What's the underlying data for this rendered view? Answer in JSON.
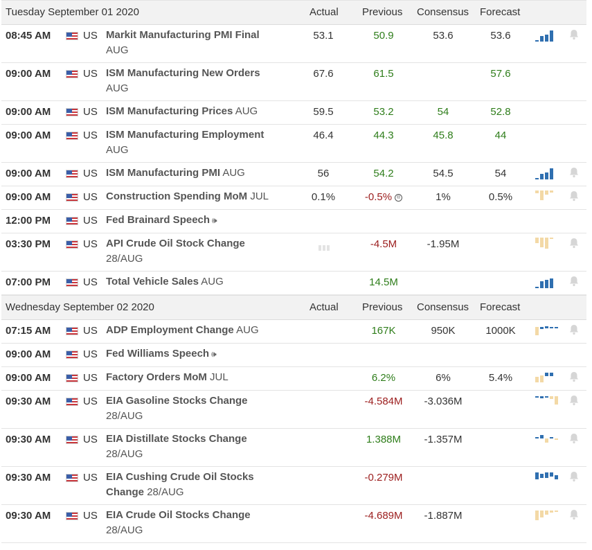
{
  "columns": {
    "actual": "Actual",
    "previous": "Previous",
    "consensus": "Consensus",
    "forecast": "Forecast"
  },
  "days": [
    {
      "date": "Tuesday September 01 2020",
      "events": [
        {
          "time": "08:45 AM",
          "country": "US",
          "name": "Markit Manufacturing PMI Final",
          "period": "AUG",
          "actual": "53.1",
          "previous": "50.9",
          "consensus": "53.6",
          "forecast": "53.6",
          "chart": "bars-blue-rising",
          "bell": true
        },
        {
          "time": "09:00 AM",
          "country": "US",
          "name": "ISM Manufacturing New Orders",
          "period": "AUG",
          "actual": "67.6",
          "previous": "61.5",
          "consensus": "",
          "forecast": "57.6",
          "chart": "",
          "bell": false
        },
        {
          "time": "09:00 AM",
          "country": "US",
          "name": "ISM Manufacturing Prices",
          "period": "AUG",
          "actual": "59.5",
          "previous": "53.2",
          "consensus": "54",
          "forecast": "52.8",
          "chart": "",
          "bell": false
        },
        {
          "time": "09:00 AM",
          "country": "US",
          "name": "ISM Manufacturing Employment",
          "period": "AUG",
          "actual": "46.4",
          "previous": "44.3",
          "consensus": "45.8",
          "forecast": "44",
          "chart": "",
          "bell": false
        },
        {
          "time": "09:00 AM",
          "country": "US",
          "name": "ISM Manufacturing PMI",
          "period": "AUG",
          "actual": "56",
          "previous": "54.2",
          "consensus": "54.5",
          "forecast": "54",
          "chart": "bars-blue-rising",
          "bell": true
        },
        {
          "time": "09:00 AM",
          "country": "US",
          "name": "Construction Spending MoM",
          "period": "JUL",
          "actual": "0.1%",
          "previous": "-0.5%",
          "consensus": "1%",
          "forecast": "0.5%",
          "chart": "bars-tan-mixed",
          "bell": true
        },
        {
          "time": "12:00 PM",
          "country": "US",
          "name": "Fed Brainard Speech",
          "period": "",
          "actual": "",
          "previous": "",
          "consensus": "",
          "forecast": "",
          "chart": "",
          "bell": false
        },
        {
          "time": "03:30 PM",
          "country": "US",
          "name": "API Crude Oil Stock Change",
          "period": "28/AUG",
          "actual": "",
          "previous": "-4.5M",
          "consensus": "-1.95M",
          "forecast": "",
          "chart": "bars-tan-neg",
          "bell": true
        },
        {
          "time": "07:00 PM",
          "country": "US",
          "name": "Total Vehicle Sales",
          "period": "AUG",
          "actual": "",
          "previous": "14.5M",
          "consensus": "",
          "forecast": "",
          "chart": "bars-blue-rising",
          "bell": true
        }
      ]
    },
    {
      "date": "Wednesday September 02 2020",
      "events": [
        {
          "time": "07:15 AM",
          "country": "US",
          "name": "ADP Employment Change",
          "period": "AUG",
          "actual": "",
          "previous": "167K",
          "consensus": "950K",
          "forecast": "1000K",
          "chart": "bars-small-mixed",
          "bell": true
        },
        {
          "time": "09:00 AM",
          "country": "US",
          "name": "Fed Williams Speech",
          "period": "",
          "actual": "",
          "previous": "",
          "consensus": "",
          "forecast": "",
          "chart": "",
          "bell": false
        },
        {
          "time": "09:00 AM",
          "country": "US",
          "name": "Factory Orders MoM",
          "period": "JUL",
          "actual": "",
          "previous": "6.2%",
          "consensus": "6%",
          "forecast": "5.4%",
          "chart": "bars-tan-blue",
          "bell": true
        },
        {
          "time": "09:30 AM",
          "country": "US",
          "name": "EIA Gasoline Stocks Change",
          "period": "28/AUG",
          "actual": "",
          "previous": "-4.584M",
          "consensus": "-3.036M",
          "forecast": "",
          "chart": "bars-mixed-neg",
          "bell": true
        },
        {
          "time": "09:30 AM",
          "country": "US",
          "name": "EIA Distillate Stocks Change",
          "period": "28/AUG",
          "actual": "",
          "previous": "1.388M",
          "consensus": "-1.357M",
          "forecast": "",
          "chart": "bars-mixed-2",
          "bell": true
        },
        {
          "time": "09:30 AM",
          "country": "US",
          "name": "EIA Cushing Crude Oil Stocks Change",
          "period": "28/AUG",
          "actual": "",
          "previous": "-0.279M",
          "consensus": "",
          "forecast": "",
          "chart": "bars-blue-neg",
          "bell": true
        },
        {
          "time": "09:30 AM",
          "country": "US",
          "name": "EIA Crude Oil Stocks Change",
          "period": "28/AUG",
          "actual": "",
          "previous": "-4.689M",
          "consensus": "-1.887M",
          "forecast": "",
          "chart": "bars-tan-neg",
          "bell": true
        }
      ]
    }
  ]
}
